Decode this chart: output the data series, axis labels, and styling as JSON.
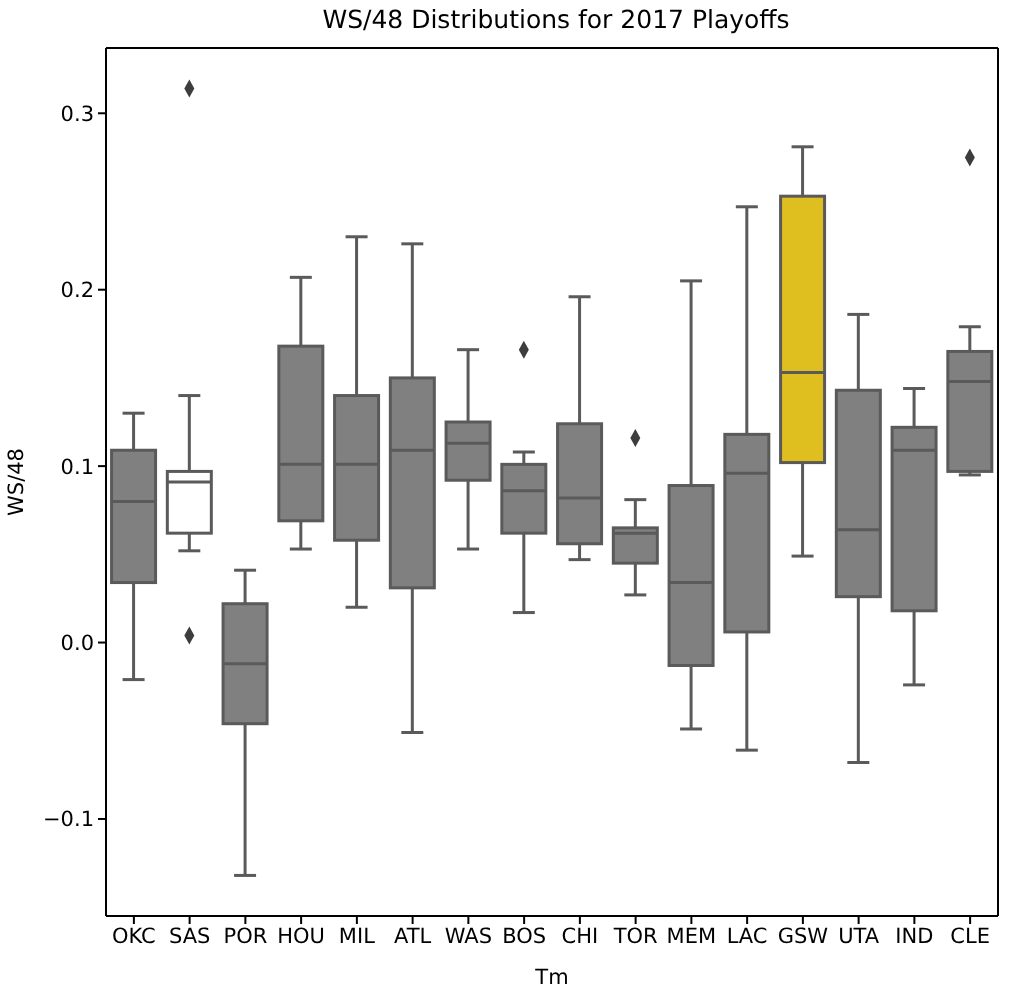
{
  "chart_data": {
    "type": "box",
    "title": "WS/48 Distributions for 2017 Playoffs",
    "xlabel": "Tm",
    "ylabel": "WS/48",
    "categories": [
      "OKC",
      "SAS",
      "POR",
      "HOU",
      "MIL",
      "ATL",
      "WAS",
      "BOS",
      "CHI",
      "TOR",
      "MEM",
      "LAC",
      "GSW",
      "UTA",
      "IND",
      "CLE"
    ],
    "colors": [
      "#808080",
      "#ffffff",
      "#808080",
      "#808080",
      "#808080",
      "#808080",
      "#808080",
      "#808080",
      "#808080",
      "#808080",
      "#808080",
      "#808080",
      "#dfbf1f",
      "#808080",
      "#808080",
      "#808080"
    ],
    "boxes": [
      {
        "low": -0.021,
        "q1": 0.034,
        "median": 0.08,
        "q3": 0.109,
        "high": 0.13
      },
      {
        "low": 0.052,
        "q1": 0.062,
        "median": 0.091,
        "q3": 0.097,
        "high": 0.14,
        "outliers": [
          0.004,
          0.314
        ]
      },
      {
        "low": -0.132,
        "q1": -0.046,
        "median": -0.012,
        "q3": 0.022,
        "high": 0.041
      },
      {
        "low": 0.053,
        "q1": 0.069,
        "median": 0.101,
        "q3": 0.168,
        "high": 0.207
      },
      {
        "low": 0.02,
        "q1": 0.058,
        "median": 0.101,
        "q3": 0.14,
        "high": 0.23
      },
      {
        "low": -0.051,
        "q1": 0.031,
        "median": 0.109,
        "q3": 0.15,
        "high": 0.226
      },
      {
        "low": 0.053,
        "q1": 0.092,
        "median": 0.113,
        "q3": 0.125,
        "high": 0.166
      },
      {
        "low": 0.017,
        "q1": 0.062,
        "median": 0.086,
        "q3": 0.101,
        "high": 0.108,
        "outliers": [
          0.166
        ]
      },
      {
        "low": 0.047,
        "q1": 0.056,
        "median": 0.082,
        "q3": 0.124,
        "high": 0.196
      },
      {
        "low": 0.027,
        "q1": 0.045,
        "median": 0.062,
        "q3": 0.065,
        "high": 0.081,
        "outliers": [
          0.116
        ]
      },
      {
        "low": -0.049,
        "q1": -0.013,
        "median": 0.034,
        "q3": 0.089,
        "high": 0.205
      },
      {
        "low": -0.061,
        "q1": 0.006,
        "median": 0.096,
        "q3": 0.118,
        "high": 0.247
      },
      {
        "low": 0.049,
        "q1": 0.102,
        "median": 0.153,
        "q3": 0.253,
        "high": 0.281
      },
      {
        "low": -0.068,
        "q1": 0.026,
        "median": 0.064,
        "q3": 0.143,
        "high": 0.186
      },
      {
        "low": -0.024,
        "q1": 0.018,
        "median": 0.109,
        "q3": 0.122,
        "high": 0.144
      },
      {
        "low": 0.095,
        "q1": 0.097,
        "median": 0.148,
        "q3": 0.165,
        "high": 0.179,
        "outliers": [
          0.275
        ]
      }
    ],
    "ylim": [
      -0.155,
      0.337
    ],
    "yticks": [
      {
        "value": -0.1,
        "label": "−0.1"
      },
      {
        "value": 0,
        "label": "0.0"
      },
      {
        "value": 0.1,
        "label": "0.1"
      },
      {
        "value": 0.2,
        "label": "0.2"
      },
      {
        "value": 0.3,
        "label": "0.3"
      }
    ]
  }
}
